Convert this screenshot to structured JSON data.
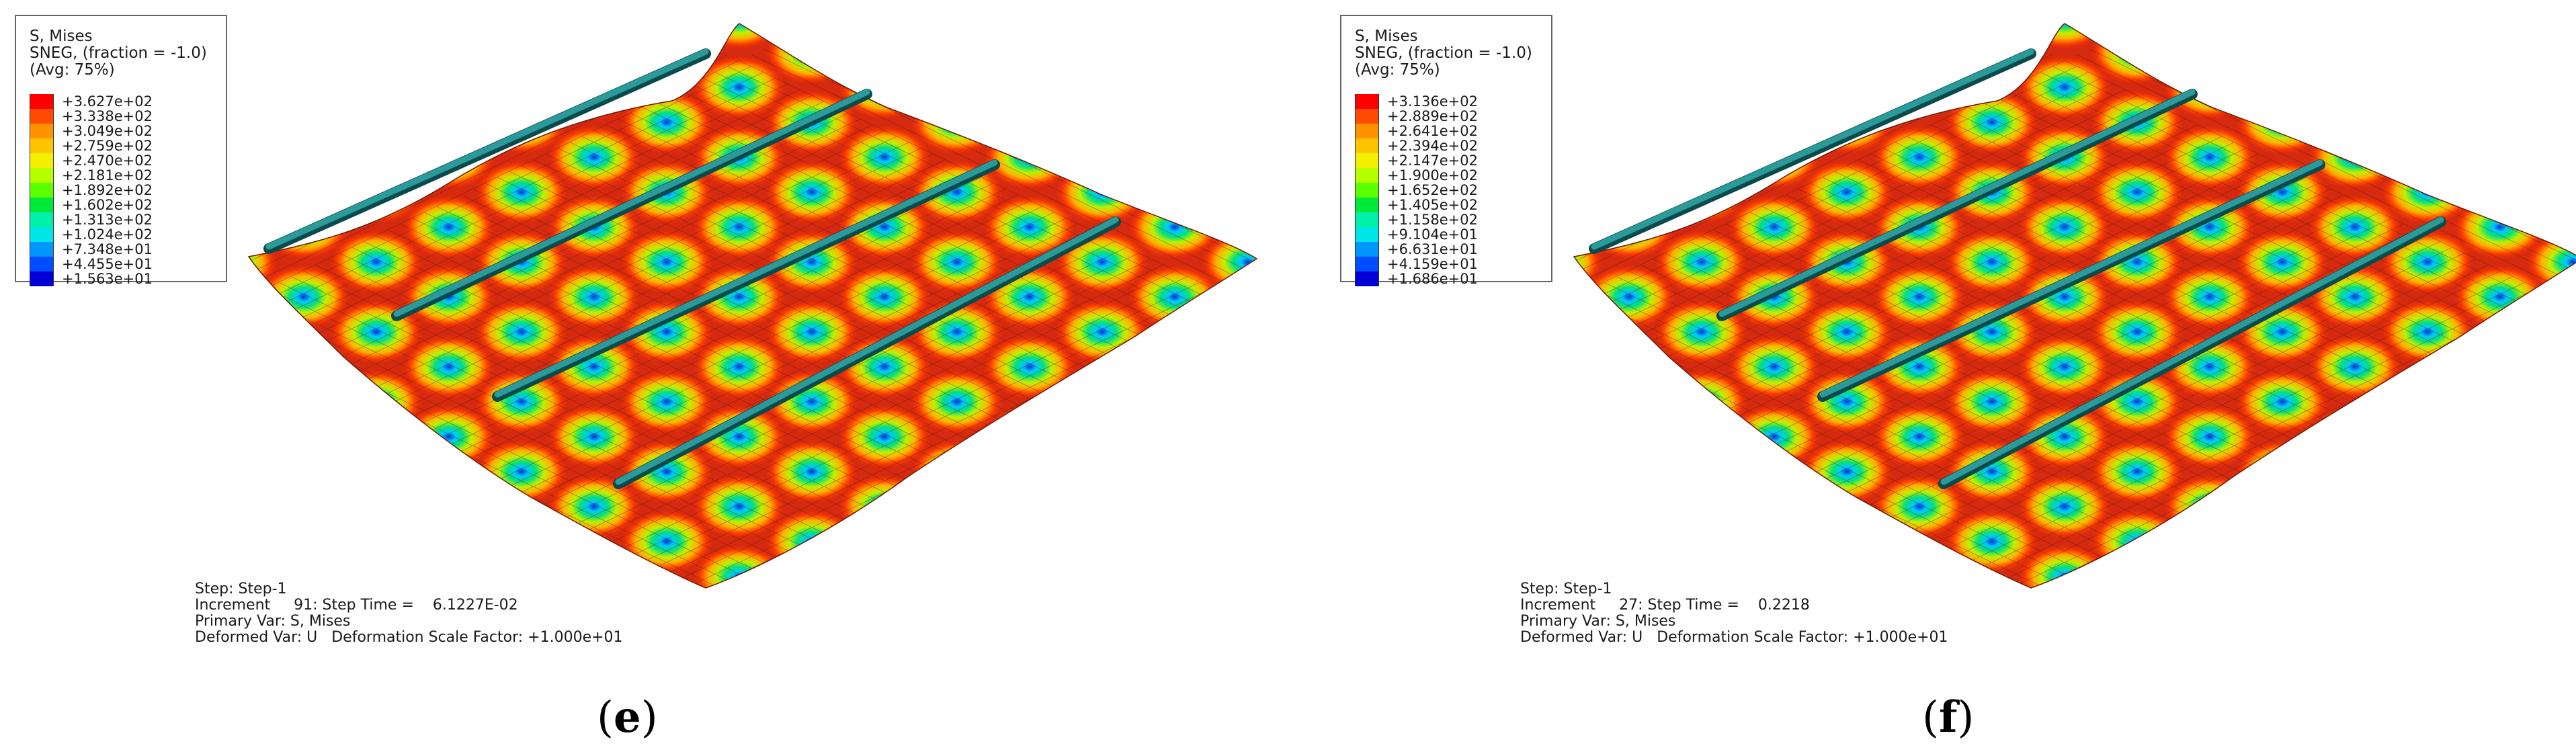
{
  "panels": [
    {
      "id": "e",
      "label_open": "(",
      "label_letter": "e",
      "label_close": ")",
      "legend": {
        "title": "S, Mises",
        "sub": "SNEG, (fraction = -1.0)",
        "avg": "(Avg: 75%)",
        "values": [
          "+3.627e+02",
          "+3.338e+02",
          "+3.049e+02",
          "+2.759e+02",
          "+2.470e+02",
          "+2.181e+02",
          "+1.892e+02",
          "+1.602e+02",
          "+1.313e+02",
          "+1.024e+02",
          "+7.348e+01",
          "+4.455e+01",
          "+1.563e+01"
        ]
      },
      "step": {
        "line1": "Step: Step-1",
        "line2": "Increment     91: Step Time =    6.1227E-02",
        "line3": "Primary Var: S, Mises",
        "line4": "Deformed Var: U   Deformation Scale Factor: +1.000e+01"
      }
    },
    {
      "id": "f",
      "label_open": "(",
      "label_letter": "f",
      "label_close": ")",
      "legend": {
        "title": "S, Mises",
        "sub": "SNEG, (fraction = -1.0)",
        "avg": "(Avg: 75%)",
        "values": [
          "+3.136e+02",
          "+2.889e+02",
          "+2.641e+02",
          "+2.394e+02",
          "+2.147e+02",
          "+1.900e+02",
          "+1.652e+02",
          "+1.405e+02",
          "+1.158e+02",
          "+9.104e+01",
          "+6.631e+01",
          "+4.159e+01",
          "+1.686e+01"
        ]
      },
      "step": {
        "line1": "Step: Step-1",
        "line2": "Increment     27: Step Time =    0.2218",
        "line3": "Primary Var: S, Mises",
        "line4": "Deformed Var: U   Deformation Scale Factor: +1.000e+01"
      }
    }
  ],
  "colors": {
    "contour": [
      "#ff0000",
      "#ff4a00",
      "#ff9200",
      "#ffc400",
      "#f0f000",
      "#b6ff00",
      "#5cff00",
      "#00e93a",
      "#00f0a8",
      "#00e6e6",
      "#0096ff",
      "#004cff",
      "#0000d6"
    ],
    "surface": "#d62a10",
    "stiffener": "#2a9a9a"
  }
}
